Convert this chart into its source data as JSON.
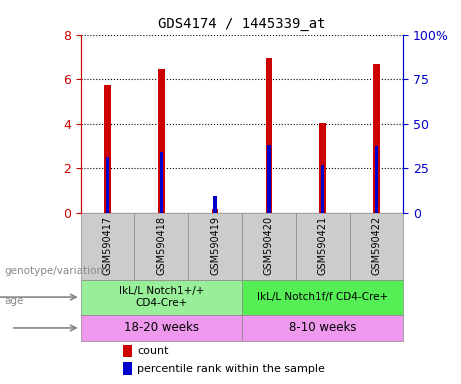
{
  "title": "GDS4174 / 1445339_at",
  "samples": [
    "GSM590417",
    "GSM590418",
    "GSM590419",
    "GSM590420",
    "GSM590421",
    "GSM590422"
  ],
  "count_values": [
    5.75,
    6.45,
    0.18,
    6.95,
    4.05,
    6.7
  ],
  "percentile_values": [
    2.5,
    2.75,
    0.75,
    3.05,
    2.15,
    3.0
  ],
  "ylim_left": [
    0,
    8
  ],
  "ylim_right": [
    0,
    100
  ],
  "yticks_left": [
    0,
    2,
    4,
    6,
    8
  ],
  "yticks_right": [
    0,
    25,
    50,
    75,
    100
  ],
  "ytick_labels_right": [
    "0",
    "25",
    "50",
    "75",
    "100%"
  ],
  "bar_color": "#cc0000",
  "percentile_color": "#0000cc",
  "genotype_groups": [
    {
      "label": "IkL/L Notch1+/+\nCD4-Cre+",
      "start": 0,
      "end": 3,
      "color": "#99ee99"
    },
    {
      "label": "IkL/L Notch1f/f CD4-Cre+",
      "start": 3,
      "end": 6,
      "color": "#55ee55"
    }
  ],
  "age_groups": [
    {
      "label": "18-20 weeks",
      "start": 0,
      "end": 3,
      "color": "#ee99ee"
    },
    {
      "label": "8-10 weeks",
      "start": 3,
      "end": 6,
      "color": "#ee99ee"
    }
  ],
  "legend_count_label": "count",
  "legend_percentile_label": "percentile rank within the sample",
  "genotype_label": "genotype/variation",
  "age_label": "age",
  "bar_width": 0.12,
  "sample_bg_color": "#cccccc",
  "left_axis_color": "#cc0000",
  "right_axis_color": "#0000cc"
}
